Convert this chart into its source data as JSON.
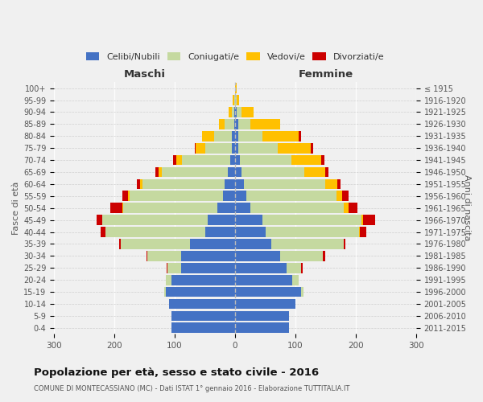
{
  "age_groups": [
    "0-4",
    "5-9",
    "10-14",
    "15-19",
    "20-24",
    "25-29",
    "30-34",
    "35-39",
    "40-44",
    "45-49",
    "50-54",
    "55-59",
    "60-64",
    "65-69",
    "70-74",
    "75-79",
    "80-84",
    "85-89",
    "90-94",
    "95-99",
    "100+"
  ],
  "birth_years": [
    "2011-2015",
    "2006-2010",
    "2001-2005",
    "1996-2000",
    "1991-1995",
    "1986-1990",
    "1981-1985",
    "1976-1980",
    "1971-1975",
    "1966-1970",
    "1961-1965",
    "1956-1960",
    "1951-1955",
    "1946-1950",
    "1941-1945",
    "1936-1940",
    "1931-1935",
    "1926-1930",
    "1921-1925",
    "1916-1920",
    "≤ 1915"
  ],
  "maschi": {
    "celibi": [
      105,
      105,
      110,
      115,
      105,
      90,
      90,
      75,
      50,
      45,
      30,
      20,
      18,
      12,
      8,
      5,
      5,
      2,
      1,
      0,
      0
    ],
    "coniugati": [
      0,
      0,
      0,
      2,
      10,
      22,
      55,
      115,
      165,
      175,
      155,
      155,
      135,
      110,
      80,
      45,
      30,
      15,
      5,
      2,
      0
    ],
    "vedovi": [
      0,
      0,
      0,
      0,
      0,
      0,
      0,
      0,
      0,
      0,
      2,
      2,
      5,
      5,
      10,
      15,
      20,
      10,
      5,
      2,
      0
    ],
    "divorziati": [
      0,
      0,
      0,
      0,
      0,
      2,
      2,
      2,
      8,
      10,
      20,
      10,
      5,
      5,
      5,
      2,
      0,
      0,
      0,
      0,
      0
    ]
  },
  "femmine": {
    "celibi": [
      90,
      90,
      100,
      110,
      95,
      85,
      75,
      60,
      50,
      45,
      25,
      18,
      15,
      10,
      8,
      5,
      5,
      5,
      2,
      0,
      0
    ],
    "coniugati": [
      0,
      0,
      0,
      3,
      10,
      25,
      70,
      120,
      155,
      165,
      155,
      150,
      135,
      105,
      85,
      65,
      40,
      20,
      8,
      2,
      0
    ],
    "vedovi": [
      0,
      0,
      0,
      0,
      0,
      0,
      0,
      0,
      2,
      2,
      8,
      10,
      20,
      35,
      50,
      55,
      60,
      50,
      20,
      5,
      2
    ],
    "divorziati": [
      0,
      0,
      0,
      0,
      0,
      2,
      5,
      3,
      10,
      20,
      15,
      10,
      5,
      5,
      5,
      5,
      5,
      0,
      0,
      0,
      0
    ]
  },
  "colors": {
    "celibi": "#4472c4",
    "coniugati": "#c5d9a0",
    "vedovi": "#ffc000",
    "divorziati": "#cc0000"
  },
  "legend_labels": [
    "Celibi/Nubili",
    "Coniugati/e",
    "Vedovi/e",
    "Divorziati/e"
  ],
  "title": "Popolazione per età, sesso e stato civile - 2016",
  "subtitle": "COMUNE DI MONTECASSIANO (MC) - Dati ISTAT 1° gennaio 2016 - Elaborazione TUTTITALIA.IT",
  "xlabel_maschi": "Maschi",
  "xlabel_femmine": "Femmine",
  "ylabel_left": "Fasce di età",
  "ylabel_right": "Anni di nascita",
  "xlim": 300,
  "bg_color": "#f0f0f0",
  "bar_height": 0.85
}
